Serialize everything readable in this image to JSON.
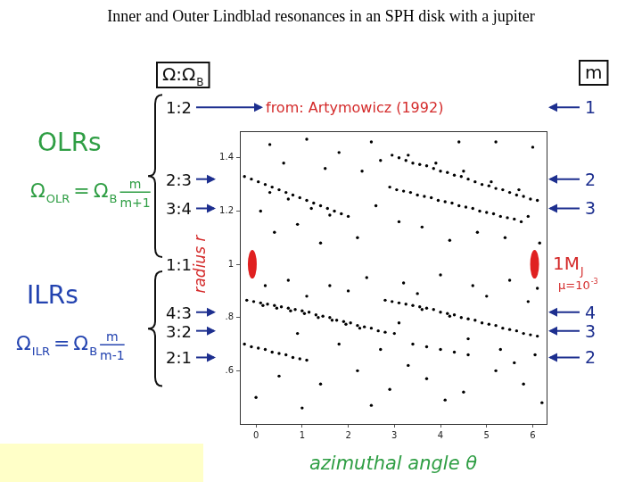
{
  "chart_data": {
    "type": "scatter",
    "title": "Inner and Outer Lindblad resonances in an SPH disk with a jupiter",
    "x_label": "azimuthal angle θ",
    "y_label": "radius r",
    "xlim": [
      -0.35,
      6.3
    ],
    "xticks": [
      0,
      1,
      2,
      3,
      4,
      5,
      6
    ],
    "ylim": [
      0.4,
      1.5
    ],
    "yticks": [
      {
        "value": 0.6,
        "label": ".6"
      },
      {
        "value": 0.8,
        "label": ".8"
      },
      1,
      1.2,
      1.4
    ],
    "grid": false,
    "color": "#000000",
    "marker": "circle",
    "x": [
      2.95,
      3.1,
      3.25,
      3.4,
      3.55,
      3.7,
      3.85,
      4.0,
      4.15,
      4.3,
      4.45,
      4.6,
      4.75,
      4.9,
      5.05,
      5.2,
      5.35,
      5.5,
      5.65,
      5.8,
      5.95,
      6.1,
      3.3,
      3.9,
      4.5,
      5.1,
      5.7,
      -0.25,
      -0.1,
      0.05,
      0.2,
      0.35,
      0.5,
      0.65,
      0.8,
      0.95,
      1.1,
      1.25,
      1.4,
      1.55,
      1.7,
      1.85,
      2.0,
      0.3,
      0.7,
      1.2,
      1.6,
      2.9,
      3.05,
      3.2,
      3.35,
      3.5,
      3.65,
      3.8,
      3.95,
      4.1,
      4.25,
      4.4,
      4.55,
      4.7,
      4.85,
      5.0,
      5.15,
      5.3,
      5.45,
      5.6,
      5.75,
      -0.2,
      -0.05,
      0.1,
      0.25,
      0.4,
      0.55,
      0.7,
      0.85,
      1.0,
      1.15,
      1.3,
      1.45,
      1.6,
      1.75,
      1.9,
      2.05,
      2.2,
      2.35,
      2.5,
      2.65,
      0.15,
      0.45,
      0.75,
      1.05,
      1.35,
      1.65,
      1.95,
      2.25,
      2.8,
      3.0,
      2.8,
      2.95,
      3.1,
      3.25,
      3.4,
      3.55,
      3.7,
      3.85,
      4.0,
      4.15,
      4.3,
      4.45,
      4.6,
      4.75,
      4.9,
      5.05,
      5.2,
      5.35,
      5.5,
      5.65,
      5.8,
      5.95,
      6.1,
      3.6,
      4.2,
      -0.25,
      -0.1,
      0.05,
      0.2,
      0.35,
      0.5,
      0.65,
      0.8,
      0.95,
      1.1,
      3.4,
      3.7,
      4.0,
      4.3,
      4.6,
      0.3,
      1.1,
      1.8,
      2.5,
      0.6,
      1.5,
      2.3,
      2.7,
      5.2,
      6.0,
      4.4,
      0.1,
      0.9,
      2.6,
      2.2,
      3.6,
      4.8,
      5.9,
      1.4,
      0.4,
      3.1,
      4.2,
      5.4,
      6.15,
      0.7,
      1.6,
      2.4,
      3.2,
      4.0,
      4.7,
      5.5,
      6.1,
      0.2,
      1.1,
      2.0,
      3.5,
      5.0,
      5.9,
      0.9,
      1.8,
      2.7,
      3.1,
      4.6,
      5.3,
      6.05,
      0.5,
      1.4,
      2.2,
      2.9,
      3.7,
      4.5,
      5.2,
      5.8,
      6.2,
      0.0,
      1.0,
      2.5,
      3.3,
      4.1,
      5.6
    ],
    "values": [
      1.41,
      1.4,
      1.39,
      1.38,
      1.375,
      1.37,
      1.36,
      1.35,
      1.345,
      1.335,
      1.33,
      1.32,
      1.31,
      1.3,
      1.295,
      1.285,
      1.28,
      1.27,
      1.26,
      1.255,
      1.245,
      1.24,
      1.41,
      1.38,
      1.35,
      1.31,
      1.28,
      1.33,
      1.32,
      1.31,
      1.3,
      1.29,
      1.28,
      1.27,
      1.26,
      1.25,
      1.24,
      1.23,
      1.22,
      1.21,
      1.2,
      1.19,
      1.18,
      1.27,
      1.245,
      1.21,
      1.185,
      1.29,
      1.28,
      1.275,
      1.27,
      1.26,
      1.255,
      1.25,
      1.24,
      1.235,
      1.23,
      1.22,
      1.215,
      1.21,
      1.2,
      1.195,
      1.19,
      1.18,
      1.175,
      1.17,
      1.16,
      0.865,
      0.86,
      0.855,
      0.85,
      0.845,
      0.84,
      0.835,
      0.83,
      0.825,
      0.82,
      0.81,
      0.805,
      0.8,
      0.79,
      0.785,
      0.78,
      0.77,
      0.765,
      0.76,
      0.75,
      0.845,
      0.835,
      0.825,
      0.815,
      0.8,
      0.79,
      0.775,
      0.76,
      0.745,
      0.74,
      0.865,
      0.86,
      0.855,
      0.85,
      0.845,
      0.84,
      0.835,
      0.83,
      0.82,
      0.815,
      0.81,
      0.8,
      0.795,
      0.79,
      0.78,
      0.775,
      0.77,
      0.76,
      0.755,
      0.75,
      0.74,
      0.735,
      0.73,
      0.83,
      0.805,
      0.7,
      0.69,
      0.685,
      0.68,
      0.67,
      0.665,
      0.66,
      0.65,
      0.645,
      0.64,
      0.7,
      0.69,
      0.68,
      0.67,
      0.66,
      1.45,
      1.47,
      1.42,
      1.46,
      1.38,
      1.36,
      1.35,
      1.39,
      1.46,
      1.44,
      1.46,
      1.2,
      1.15,
      1.22,
      1.1,
      1.14,
      1.12,
      1.18,
      1.08,
      1.12,
      1.16,
      1.09,
      1.1,
      1.08,
      0.94,
      0.92,
      0.95,
      0.93,
      0.96,
      0.92,
      0.94,
      0.91,
      0.92,
      0.88,
      0.9,
      0.89,
      0.88,
      0.86,
      0.74,
      0.7,
      0.68,
      0.78,
      0.72,
      0.68,
      0.66,
      0.58,
      0.55,
      0.6,
      0.53,
      0.57,
      0.52,
      0.6,
      0.55,
      0.48,
      0.5,
      0.46,
      0.47,
      0.62,
      0.49,
      0.63
    ],
    "annotations": {
      "source": "from: Artymowicz (1992)",
      "ratio_header": {
        "text": "Ω:Ω",
        "sub": "B"
      },
      "m_header": "m",
      "groups": [
        {
          "name": "OLRs",
          "formula": {
            "lhs": "Ω",
            "lhs_sub": "OLR",
            "eq": "=",
            "rhs": "Ω",
            "rhs_sub": "B",
            "num": "m",
            "den": "m+1"
          },
          "resonances": [
            {
              "ratio": "1:2",
              "m": "1",
              "r": 1.59
            },
            {
              "ratio": "2:3",
              "m": "2",
              "r": 1.32
            },
            {
              "ratio": "3:4",
              "m": "3",
              "r": 1.21
            }
          ]
        },
        {
          "name": "ILRs",
          "formula": {
            "lhs": "Ω",
            "lhs_sub": "ILR",
            "eq": "=",
            "rhs": "Ω",
            "rhs_sub": "B",
            "num": "m",
            "den": "m-1"
          },
          "resonances": [
            {
              "ratio": "4:3",
              "m": "4",
              "r": 0.82
            },
            {
              "ratio": "3:2",
              "m": "3",
              "r": 0.75
            },
            {
              "ratio": "2:1",
              "m": "2",
              "r": 0.65
            }
          ]
        }
      ],
      "corotation": {
        "ratio": "1:1",
        "r": 1
      },
      "planet": {
        "r": 1,
        "theta": [
          -0.08,
          6.04
        ],
        "label": {
          "text": "1M",
          "sub": "J"
        },
        "mass_ratio": {
          "text": "μ=10",
          "sup": "-3"
        }
      }
    }
  }
}
